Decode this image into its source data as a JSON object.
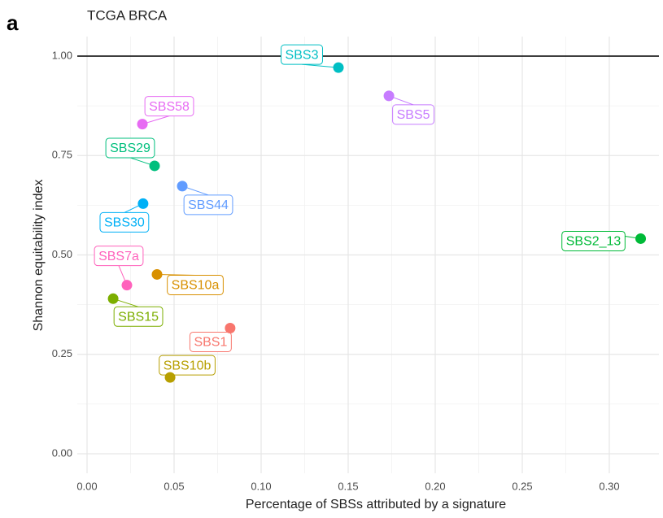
{
  "chart_data": {
    "type": "scatter",
    "panel_label": "a",
    "title": "TCGA BRCA",
    "x_label": "Percentage of SBSs attributed by a signature",
    "y_label": "Shannon equitability index",
    "xlim": [
      -0.0056,
      0.3285
    ],
    "ylim": [
      -0.049,
      1.049
    ],
    "xticks": [
      {
        "value": 0,
        "label": "0.00"
      },
      {
        "value": 0.05,
        "label": "0.05"
      },
      {
        "value": 0.1,
        "label": "0.10"
      },
      {
        "value": 0.15,
        "label": "0.15"
      },
      {
        "value": 0.2,
        "label": "0.20"
      },
      {
        "value": 0.25,
        "label": "0.25"
      },
      {
        "value": 0.3,
        "label": "0.30"
      }
    ],
    "yticks": [
      {
        "value": 0,
        "label": "0.00"
      },
      {
        "value": 0.25,
        "label": "0.25"
      },
      {
        "value": 0.5,
        "label": "0.50"
      },
      {
        "value": 0.75,
        "label": "0.75"
      },
      {
        "value": 1,
        "label": "1.00"
      }
    ],
    "grid": true,
    "hline": 1,
    "series": [
      {
        "name": "SBS3",
        "color": "#00bfc4",
        "x": [
          0.1444
        ],
        "values": [
          0.971
        ]
      },
      {
        "name": "SBS5",
        "color": "#c77cff",
        "x": [
          0.1734
        ],
        "values": [
          0.9
        ]
      },
      {
        "name": "SBS58",
        "color": "#e76bf3",
        "x": [
          0.0318
        ],
        "values": [
          0.829
        ]
      },
      {
        "name": "SBS29",
        "color": "#00bf7d",
        "x": [
          0.0388
        ],
        "values": [
          0.724
        ]
      },
      {
        "name": "SBS44",
        "color": "#619cff",
        "x": [
          0.0547
        ],
        "values": [
          0.673
        ]
      },
      {
        "name": "SBS30",
        "color": "#00b0f6",
        "x": [
          0.0322
        ],
        "values": [
          0.629
        ]
      },
      {
        "name": "SBS2_13",
        "color": "#00ba38",
        "x": [
          0.318
        ],
        "values": [
          0.541
        ]
      },
      {
        "name": "SBS7a",
        "color": "#ff62bc",
        "x": [
          0.0229
        ],
        "values": [
          0.424
        ]
      },
      {
        "name": "SBS10a",
        "color": "#d89000",
        "x": [
          0.0402
        ],
        "values": [
          0.451
        ]
      },
      {
        "name": "SBS15",
        "color": "#7cae00",
        "x": [
          0.015
        ],
        "values": [
          0.39
        ]
      },
      {
        "name": "SBS1",
        "color": "#f8766d",
        "x": [
          0.0822
        ],
        "values": [
          0.316
        ]
      },
      {
        "name": "SBS10b",
        "color": "#b79f00",
        "x": [
          0.0477
        ],
        "values": [
          0.192
        ]
      }
    ]
  }
}
